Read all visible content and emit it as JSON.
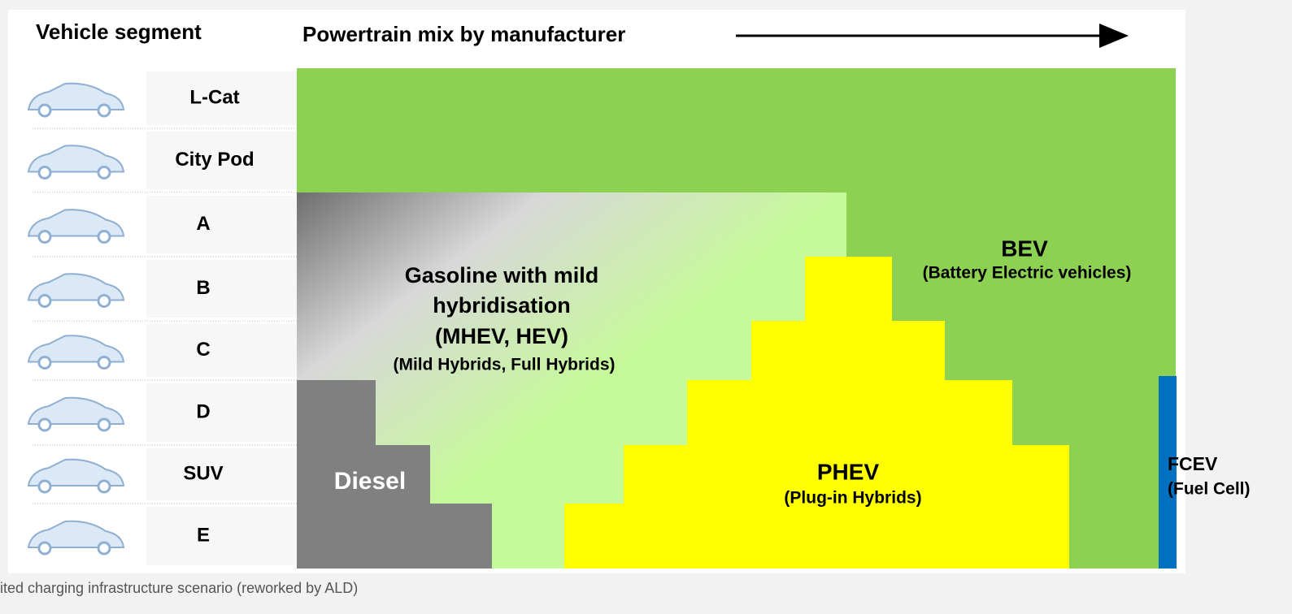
{
  "header": {
    "left_title": "Vehicle segment",
    "right_title": "Powertrain mix by manufacturer"
  },
  "segments": [
    "L-Cat",
    "City Pod",
    "A",
    "B",
    "C",
    "D",
    "SUV",
    "E"
  ],
  "regions": {
    "gasoline": {
      "lines": [
        "Gasoline with mild",
        "hybridisation",
        "(MHEV, HEV)"
      ],
      "subtitle": "(Mild Hybrids, Full Hybrids)"
    },
    "bev": {
      "title": "BEV",
      "subtitle": "(Battery Electric vehicles)"
    },
    "phev": {
      "title": "PHEV",
      "subtitle": "(Plug-in Hybrids)"
    },
    "diesel": {
      "title": "Diesel"
    },
    "fcev": {
      "title": "FCEV",
      "subtitle": "(Fuel Cell)"
    }
  },
  "caption": "ited charging infrastructure scenario (reworked by ALD)"
}
